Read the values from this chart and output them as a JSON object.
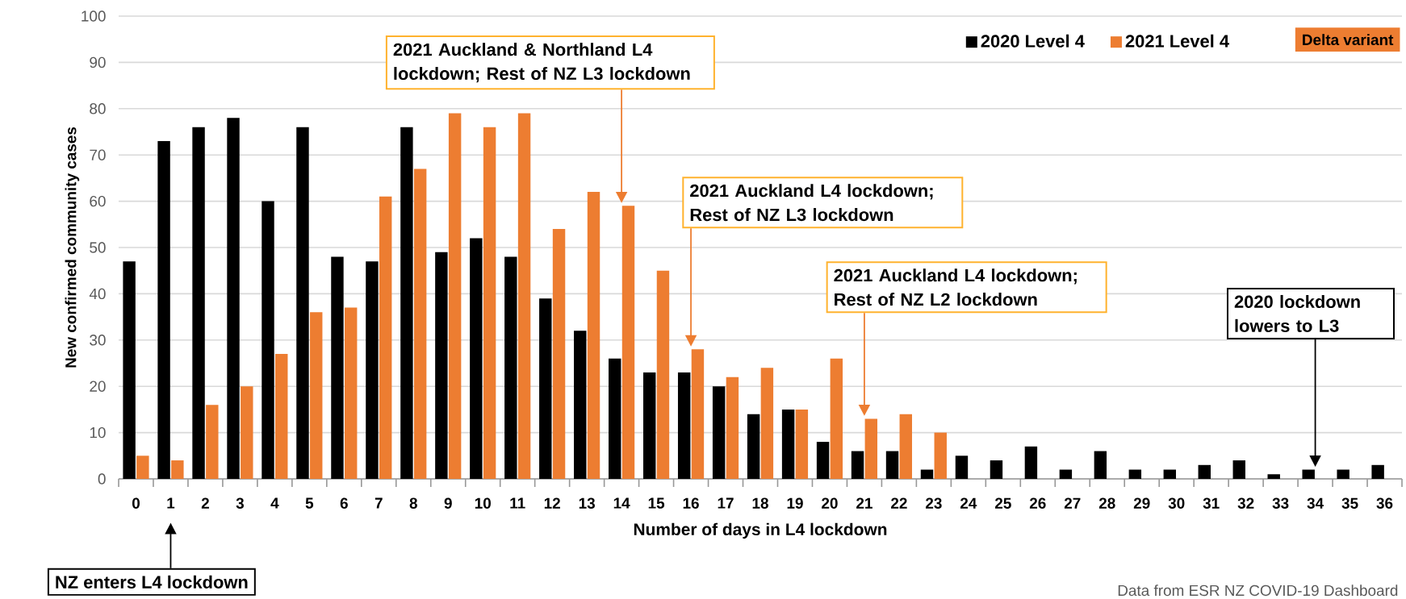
{
  "chart_data": {
    "type": "bar",
    "categories": [
      "0",
      "1",
      "2",
      "3",
      "4",
      "5",
      "6",
      "7",
      "8",
      "9",
      "10",
      "11",
      "12",
      "13",
      "14",
      "15",
      "16",
      "17",
      "18",
      "19",
      "20",
      "21",
      "22",
      "23",
      "24",
      "25",
      "26",
      "27",
      "28",
      "29",
      "30",
      "31",
      "32",
      "33",
      "34",
      "35",
      "36"
    ],
    "series": [
      {
        "name": "2020 Level 4",
        "color": "#000000",
        "values": [
          47,
          73,
          76,
          78,
          60,
          76,
          48,
          47,
          76,
          49,
          52,
          48,
          39,
          32,
          26,
          23,
          23,
          20,
          14,
          15,
          8,
          6,
          6,
          2,
          5,
          4,
          7,
          2,
          6,
          2,
          2,
          3,
          4,
          1,
          2,
          2,
          3
        ]
      },
      {
        "name": "2021 Level 4",
        "color": "#ed7d31",
        "values": [
          5,
          4,
          16,
          20,
          27,
          36,
          37,
          61,
          67,
          79,
          76,
          79,
          54,
          62,
          59,
          45,
          28,
          22,
          24,
          15,
          26,
          13,
          14,
          10,
          null,
          null,
          null,
          null,
          null,
          null,
          null,
          null,
          null,
          null,
          null,
          null,
          null
        ]
      }
    ],
    "xlabel": "Number of days in L4 lockdown",
    "ylabel": "New confirmed community cases",
    "ylim": [
      0,
      100
    ],
    "yticks": [
      0,
      10,
      20,
      30,
      40,
      50,
      60,
      70,
      80,
      90,
      100
    ],
    "grid": "y",
    "legend": "top right",
    "annotations": [
      "2021 Auckland & Northland L4 lockdown; Rest of NZ L3 lockdown",
      "2021 Auckland L4 lockdown; Rest of NZ L3 lockdown",
      "2021 Auckland L4 lockdown; Rest of NZ L2 lockdown",
      "2020 lockdown lowers to L3",
      "NZ enters L4 lockdown",
      "Delta variant",
      "Data from ESR NZ COVID-19 Dashboard"
    ]
  }
}
